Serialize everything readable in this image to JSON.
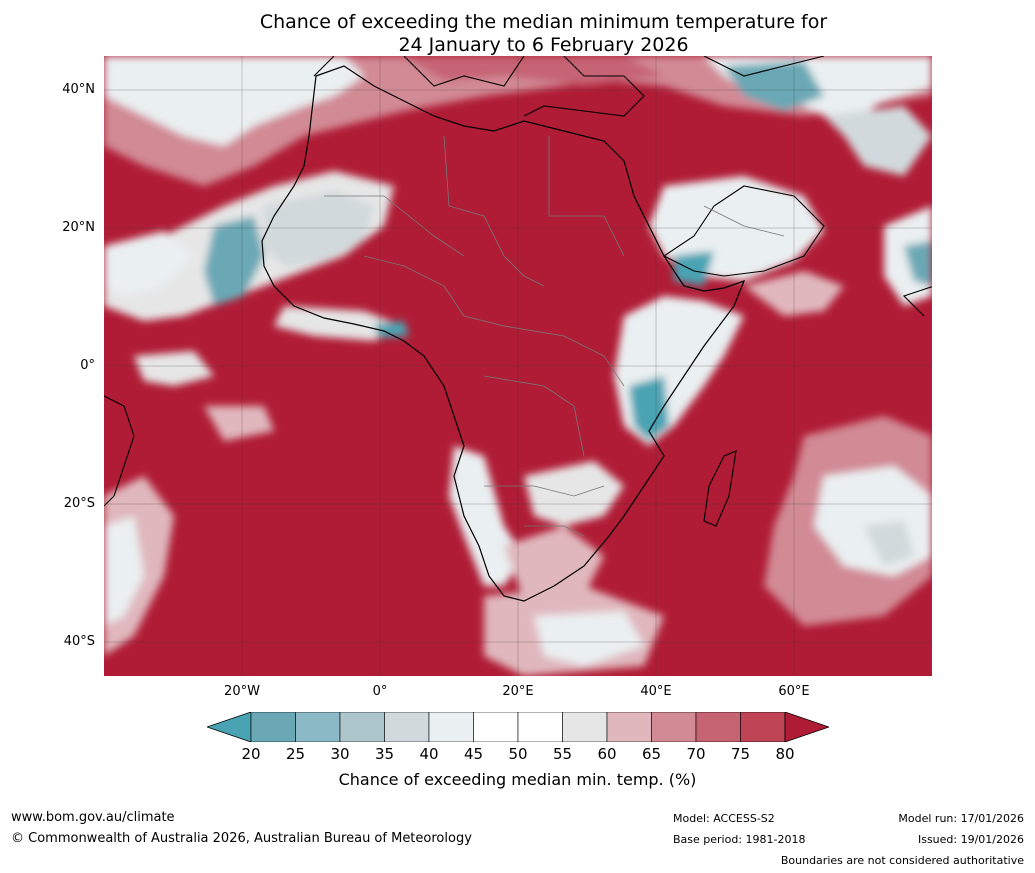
{
  "title": {
    "line1": "Chance of exceeding the median minimum temperature for",
    "line2": "24 January to 6 February 2026"
  },
  "map": {
    "region": "Africa",
    "latitude_labels": [
      "40°N",
      "20°N",
      "0°",
      "20°S",
      "40°S"
    ],
    "longitude_labels": [
      "20°W",
      "0°",
      "20°E",
      "40°E",
      "60°E"
    ]
  },
  "colorbar": {
    "ticks": [
      "20",
      "25",
      "30",
      "35",
      "40",
      "45",
      "50",
      "55",
      "60",
      "65",
      "70",
      "75",
      "80"
    ],
    "colors": [
      "#4aa3b3",
      "#6aa8b5",
      "#8bb9c6",
      "#adc6cc",
      "#d1d9dc",
      "#eaeff1",
      "#ffffff",
      "#ffffff",
      "#e6e6e6",
      "#e0b7bd",
      "#d28a95",
      "#c66474",
      "#bf4556",
      "#b01c35"
    ],
    "title": "Chance of exceeding median min. temp. (%)"
  },
  "footer": {
    "url": "www.bom.gov.au/climate",
    "copyright": "© Commonwealth of Australia 2026, Australian Bureau of Meteorology",
    "model": "Model: ACCESS-S2",
    "base_period": "Base period: 1981-2018",
    "model_run": "Model run: 17/01/2026",
    "issued": "Issued: 19/01/2026",
    "disclaimer": "Boundaries are not considered authoritative"
  }
}
